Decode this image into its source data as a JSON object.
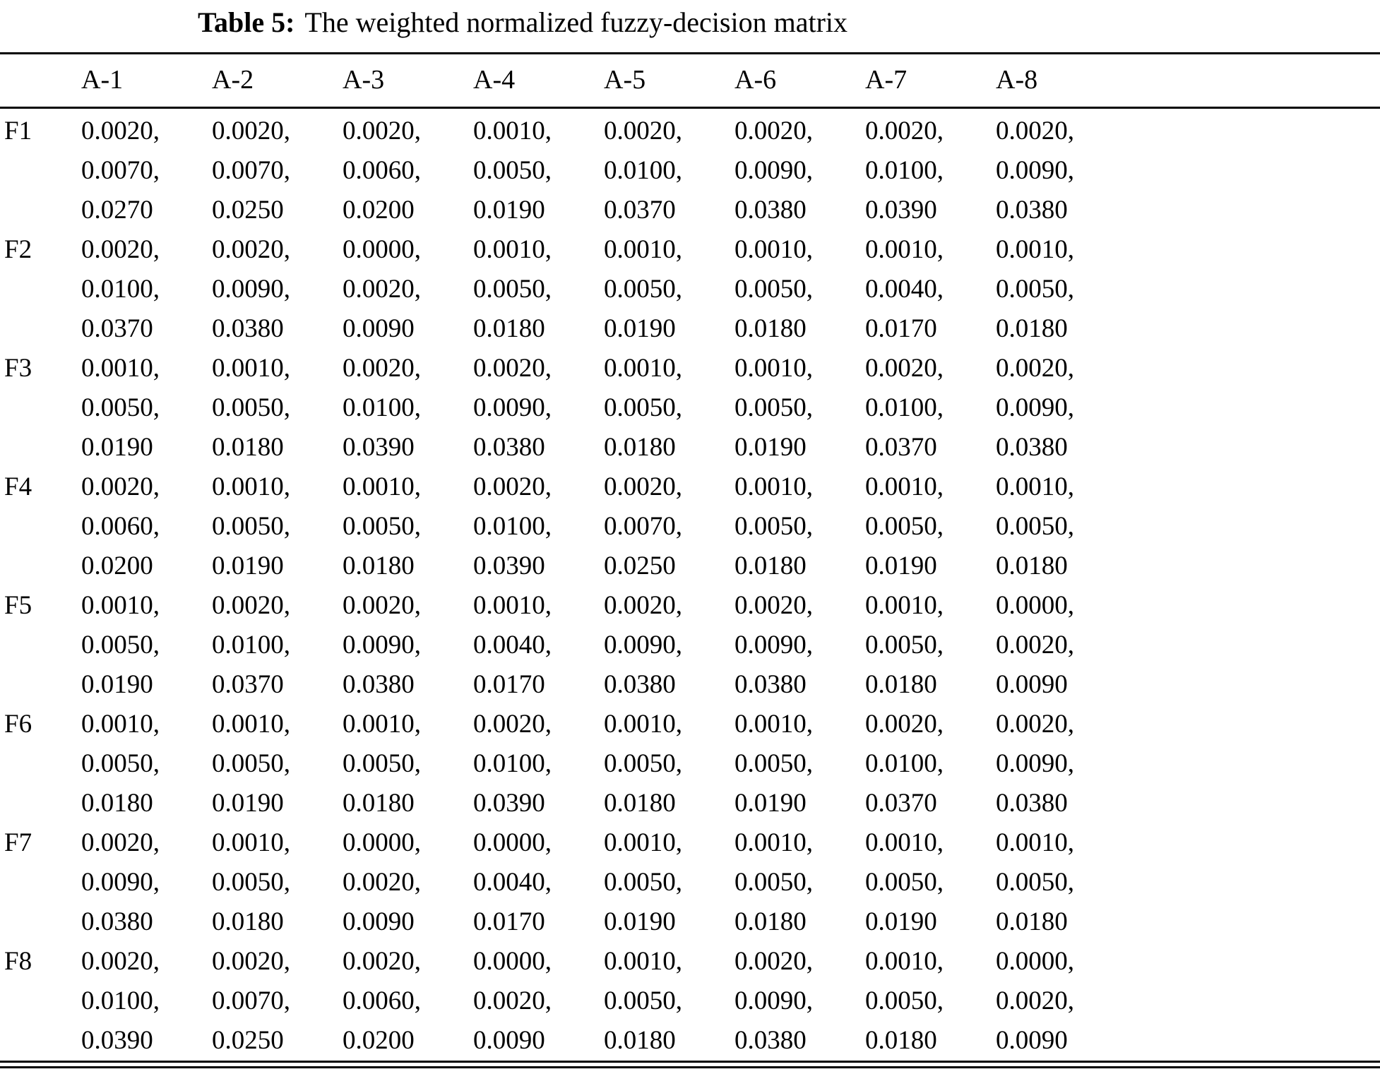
{
  "caption": {
    "label": "Table 5:",
    "text": "The weighted normalized fuzzy-decision matrix"
  },
  "table": {
    "columns": [
      "A-1",
      "A-2",
      "A-3",
      "A-4",
      "A-5",
      "A-6",
      "A-7",
      "A-8"
    ],
    "rows": [
      {
        "label": "F1",
        "cells": [
          [
            "0.0020,",
            "0.0070,",
            "0.0270"
          ],
          [
            "0.0020,",
            "0.0070,",
            "0.0250"
          ],
          [
            "0.0020,",
            "0.0060,",
            "0.0200"
          ],
          [
            "0.0010,",
            "0.0050,",
            "0.0190"
          ],
          [
            "0.0020,",
            "0.0100,",
            "0.0370"
          ],
          [
            "0.0020,",
            "0.0090,",
            "0.0380"
          ],
          [
            "0.0020,",
            "0.0100,",
            "0.0390"
          ],
          [
            "0.0020,",
            "0.0090,",
            "0.0380"
          ]
        ]
      },
      {
        "label": "F2",
        "cells": [
          [
            "0.0020,",
            "0.0100,",
            "0.0370"
          ],
          [
            "0.0020,",
            "0.0090,",
            "0.0380"
          ],
          [
            "0.0000,",
            "0.0020,",
            "0.0090"
          ],
          [
            "0.0010,",
            "0.0050,",
            "0.0180"
          ],
          [
            "0.0010,",
            "0.0050,",
            "0.0190"
          ],
          [
            "0.0010,",
            "0.0050,",
            "0.0180"
          ],
          [
            "0.0010,",
            "0.0040,",
            "0.0170"
          ],
          [
            "0.0010,",
            "0.0050,",
            "0.0180"
          ]
        ]
      },
      {
        "label": "F3",
        "cells": [
          [
            "0.0010,",
            "0.0050,",
            "0.0190"
          ],
          [
            "0.0010,",
            "0.0050,",
            "0.0180"
          ],
          [
            "0.0020,",
            "0.0100,",
            "0.0390"
          ],
          [
            "0.0020,",
            "0.0090,",
            "0.0380"
          ],
          [
            "0.0010,",
            "0.0050,",
            "0.0180"
          ],
          [
            "0.0010,",
            "0.0050,",
            "0.0190"
          ],
          [
            "0.0020,",
            "0.0100,",
            "0.0370"
          ],
          [
            "0.0020,",
            "0.0090,",
            "0.0380"
          ]
        ]
      },
      {
        "label": "F4",
        "cells": [
          [
            "0.0020,",
            "0.0060,",
            "0.0200"
          ],
          [
            "0.0010,",
            "0.0050,",
            "0.0190"
          ],
          [
            "0.0010,",
            "0.0050,",
            "0.0180"
          ],
          [
            "0.0020,",
            "0.0100,",
            "0.0390"
          ],
          [
            "0.0020,",
            "0.0070,",
            "0.0250"
          ],
          [
            "0.0010,",
            "0.0050,",
            "0.0180"
          ],
          [
            "0.0010,",
            "0.0050,",
            "0.0190"
          ],
          [
            "0.0010,",
            "0.0050,",
            "0.0180"
          ]
        ]
      },
      {
        "label": "F5",
        "cells": [
          [
            "0.0010,",
            "0.0050,",
            "0.0190"
          ],
          [
            "0.0020,",
            "0.0100,",
            "0.0370"
          ],
          [
            "0.0020,",
            "0.0090,",
            "0.0380"
          ],
          [
            "0.0010,",
            "0.0040,",
            "0.0170"
          ],
          [
            "0.0020,",
            "0.0090,",
            "0.0380"
          ],
          [
            "0.0020,",
            "0.0090,",
            "0.0380"
          ],
          [
            "0.0010,",
            "0.0050,",
            "0.0180"
          ],
          [
            "0.0000,",
            "0.0020,",
            "0.0090"
          ]
        ]
      },
      {
        "label": "F6",
        "cells": [
          [
            "0.0010,",
            "0.0050,",
            "0.0180"
          ],
          [
            "0.0010,",
            "0.0050,",
            "0.0190"
          ],
          [
            "0.0010,",
            "0.0050,",
            "0.0180"
          ],
          [
            "0.0020,",
            "0.0100,",
            "0.0390"
          ],
          [
            "0.0010,",
            "0.0050,",
            "0.0180"
          ],
          [
            "0.0010,",
            "0.0050,",
            "0.0190"
          ],
          [
            "0.0020,",
            "0.0100,",
            "0.0370"
          ],
          [
            "0.0020,",
            "0.0090,",
            "0.0380"
          ]
        ]
      },
      {
        "label": "F7",
        "cells": [
          [
            "0.0020,",
            "0.0090,",
            "0.0380"
          ],
          [
            "0.0010,",
            "0.0050,",
            "0.0180"
          ],
          [
            "0.0000,",
            "0.0020,",
            "0.0090"
          ],
          [
            "0.0000,",
            "0.0040,",
            "0.0170"
          ],
          [
            "0.0010,",
            "0.0050,",
            "0.0190"
          ],
          [
            "0.0010,",
            "0.0050,",
            "0.0180"
          ],
          [
            "0.0010,",
            "0.0050,",
            "0.0190"
          ],
          [
            "0.0010,",
            "0.0050,",
            "0.0180"
          ]
        ]
      },
      {
        "label": "F8",
        "cells": [
          [
            "0.0020,",
            "0.0100,",
            "0.0390"
          ],
          [
            "0.0020,",
            "0.0070,",
            "0.0250"
          ],
          [
            "0.0020,",
            "0.0060,",
            "0.0200"
          ],
          [
            "0.0000,",
            "0.0020,",
            "0.0090"
          ],
          [
            "0.0010,",
            "0.0050,",
            "0.0180"
          ],
          [
            "0.0020,",
            "0.0090,",
            "0.0380"
          ],
          [
            "0.0010,",
            "0.0050,",
            "0.0180"
          ],
          [
            "0.0000,",
            "0.0020,",
            "0.0090"
          ]
        ]
      }
    ]
  }
}
